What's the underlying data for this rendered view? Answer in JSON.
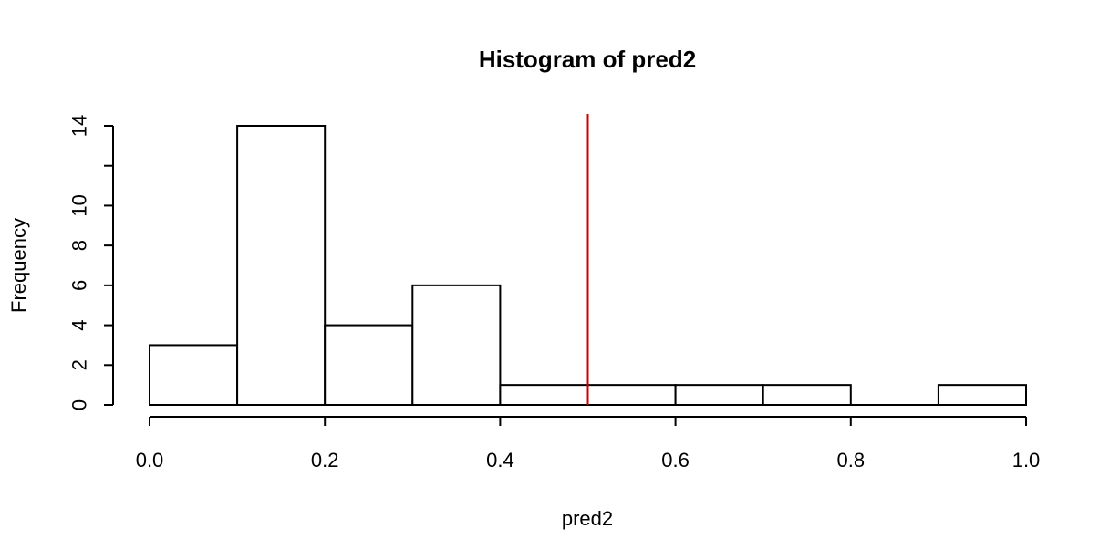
{
  "chart_data": {
    "type": "bar",
    "subtype": "histogram",
    "title": "Histogram of pred2",
    "xlabel": "pred2",
    "ylabel": "Frequency",
    "bins": [
      {
        "start": 0.0,
        "end": 0.1,
        "count": 3
      },
      {
        "start": 0.1,
        "end": 0.2,
        "count": 14
      },
      {
        "start": 0.2,
        "end": 0.3,
        "count": 4
      },
      {
        "start": 0.3,
        "end": 0.4,
        "count": 6
      },
      {
        "start": 0.4,
        "end": 0.5,
        "count": 1
      },
      {
        "start": 0.5,
        "end": 0.6,
        "count": 1
      },
      {
        "start": 0.6,
        "end": 0.7,
        "count": 1
      },
      {
        "start": 0.7,
        "end": 0.8,
        "count": 1
      },
      {
        "start": 0.8,
        "end": 0.9,
        "count": 0
      },
      {
        "start": 0.9,
        "end": 1.0,
        "count": 1
      }
    ],
    "xlim": [
      0.0,
      1.0
    ],
    "ylim": [
      0,
      14
    ],
    "x_ticks": [
      "0.0",
      "0.2",
      "0.4",
      "0.6",
      "0.8",
      "1.0"
    ],
    "y_ticks": [
      "0",
      "2",
      "4",
      "6",
      "8",
      "10",
      "12",
      "14"
    ],
    "y_tick_labels_shown": [
      "0",
      "2",
      "4",
      "6",
      "8",
      "10",
      "",
      "14"
    ],
    "reference_line": {
      "x": 0.5,
      "color": "#cc0000",
      "orientation": "vertical"
    },
    "bar_fill": "#ffffff",
    "bar_stroke": "#000000",
    "grid": false,
    "legend": "none"
  }
}
